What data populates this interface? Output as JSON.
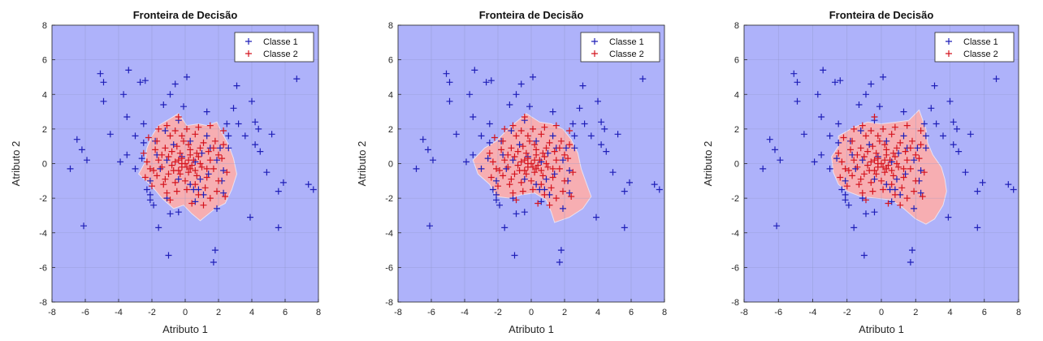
{
  "figure": {
    "panel_count": 3
  },
  "colors": {
    "class1_region": "#aeb2fa",
    "class2_region": "#f7aeb2",
    "class1_marker": "#1f1fb8",
    "class2_marker": "#d4141e",
    "grid": "#8e94c4",
    "axis": "#262626"
  },
  "chart_data": [
    {
      "type": "scatter",
      "title": "Fronteira de Decisão",
      "xlabel": "Atributo 1",
      "ylabel": "Atributo 2",
      "xlim": [
        -8,
        8
      ],
      "ylim": [
        -8,
        8
      ],
      "xticks": [
        -8,
        -6,
        -4,
        -2,
        0,
        2,
        4,
        6,
        8
      ],
      "yticks": [
        -8,
        -6,
        -4,
        -2,
        0,
        2,
        4,
        6,
        8
      ],
      "grid": true,
      "legend_position": "top-right",
      "legend": [
        "Classe 1",
        "Classe 2"
      ],
      "region_class2": [
        [
          -1.6,
          2.2
        ],
        [
          -0.9,
          2.6
        ],
        [
          -0.4,
          2.9
        ],
        [
          0.1,
          2.2
        ],
        [
          0.8,
          2.3
        ],
        [
          1.3,
          2.2
        ],
        [
          1.9,
          2.4
        ],
        [
          2.2,
          1.8
        ],
        [
          2.6,
          1.1
        ],
        [
          2.9,
          0.3
        ],
        [
          3.1,
          -0.6
        ],
        [
          2.8,
          -1.5
        ],
        [
          2.4,
          -2.3
        ],
        [
          1.8,
          -2.6
        ],
        [
          0.9,
          -3.3
        ],
        [
          0.4,
          -2.9
        ],
        [
          -0.1,
          -2.4
        ],
        [
          -0.7,
          -2.6
        ],
        [
          -1.4,
          -2.0
        ],
        [
          -2.0,
          -1.3
        ],
        [
          -2.8,
          -0.6
        ],
        [
          -2.4,
          0.1
        ],
        [
          -2.3,
          0.9
        ],
        [
          -2.0,
          1.6
        ]
      ]
    },
    {
      "type": "scatter",
      "title": "Fronteira de Decisão",
      "xlabel": "Atributo 1",
      "ylabel": "Atributo 2",
      "xlim": [
        -8,
        8
      ],
      "ylim": [
        -8,
        8
      ],
      "xticks": [
        -8,
        -6,
        -4,
        -2,
        0,
        2,
        4,
        6,
        8
      ],
      "yticks": [
        -8,
        -6,
        -4,
        -2,
        0,
        2,
        4,
        6,
        8
      ],
      "grid": true,
      "legend_position": "top-right",
      "legend": [
        "Classe 1",
        "Classe 2"
      ],
      "region_class2": [
        [
          -2.1,
          1.3
        ],
        [
          -1.4,
          2.0
        ],
        [
          -0.9,
          2.4
        ],
        [
          -0.3,
          2.9
        ],
        [
          0.5,
          2.4
        ],
        [
          1.2,
          2.3
        ],
        [
          1.9,
          2.0
        ],
        [
          2.4,
          1.4
        ],
        [
          2.8,
          0.6
        ],
        [
          3.0,
          -0.3
        ],
        [
          3.3,
          -1.1
        ],
        [
          3.6,
          -1.9
        ],
        [
          3.1,
          -2.6
        ],
        [
          2.3,
          -3.1
        ],
        [
          1.4,
          -3.4
        ],
        [
          1.2,
          -2.8
        ],
        [
          0.9,
          -2.1
        ],
        [
          0.2,
          -1.7
        ],
        [
          -0.6,
          -1.8
        ],
        [
          -1.3,
          -2.0
        ],
        [
          -2.1,
          -1.9
        ],
        [
          -2.5,
          -1.2
        ],
        [
          -3.2,
          -0.6
        ],
        [
          -3.5,
          0.2
        ],
        [
          -2.8,
          0.9
        ]
      ]
    },
    {
      "type": "scatter",
      "title": "Fronteira de Decisão",
      "xlabel": "Atributo 1",
      "ylabel": "Atributo 2",
      "xlim": [
        -8,
        8
      ],
      "ylim": [
        -8,
        8
      ],
      "xticks": [
        -8,
        -6,
        -4,
        -2,
        0,
        2,
        4,
        6,
        8
      ],
      "yticks": [
        -8,
        -6,
        -4,
        -2,
        0,
        2,
        4,
        6,
        8
      ],
      "grid": true,
      "legend_position": "top-right",
      "legend": [
        "Classe 1",
        "Classe 2"
      ],
      "region_class2": [
        [
          -2.5,
          1.6
        ],
        [
          -1.6,
          2.1
        ],
        [
          -0.8,
          2.4
        ],
        [
          0.0,
          2.3
        ],
        [
          0.9,
          2.4
        ],
        [
          1.6,
          2.5
        ],
        [
          2.2,
          3.1
        ],
        [
          2.6,
          2.0
        ],
        [
          2.7,
          1.2
        ],
        [
          3.0,
          0.5
        ],
        [
          3.5,
          -0.2
        ],
        [
          3.7,
          -0.9
        ],
        [
          3.8,
          -1.6
        ],
        [
          3.6,
          -2.4
        ],
        [
          3.1,
          -3.2
        ],
        [
          2.6,
          -3.5
        ],
        [
          2.0,
          -3.2
        ],
        [
          1.3,
          -2.6
        ],
        [
          0.6,
          -2.1
        ],
        [
          -0.3,
          -2.0
        ],
        [
          -1.2,
          -1.9
        ],
        [
          -2.0,
          -1.6
        ],
        [
          -2.5,
          -1.2
        ],
        [
          -2.8,
          -0.5
        ],
        [
          -2.9,
          0.4
        ],
        [
          -2.5,
          1.0
        ]
      ]
    }
  ],
  "points": {
    "class1": [
      [
        -6.9,
        -0.3
      ],
      [
        -6.5,
        1.4
      ],
      [
        -6.2,
        0.8
      ],
      [
        -5.9,
        0.2
      ],
      [
        -6.1,
        -3.6
      ],
      [
        -5.1,
        5.2
      ],
      [
        -4.9,
        4.7
      ],
      [
        -4.9,
        3.6
      ],
      [
        -4.5,
        1.7
      ],
      [
        -3.9,
        0.1
      ],
      [
        -3.5,
        0.5
      ],
      [
        -3.4,
        5.4
      ],
      [
        -3.7,
        4.0
      ],
      [
        -3.5,
        2.7
      ],
      [
        -3.0,
        -0.3
      ],
      [
        -3.0,
        1.6
      ],
      [
        -2.7,
        4.7
      ],
      [
        -2.5,
        2.3
      ],
      [
        -2.5,
        1.2
      ],
      [
        -2.4,
        4.8
      ],
      [
        -2.3,
        -1.5
      ],
      [
        -2.1,
        -1.8
      ],
      [
        -2.1,
        -2.1
      ],
      [
        -1.9,
        -2.4
      ],
      [
        -1.8,
        1.3
      ],
      [
        -1.6,
        -3.7
      ],
      [
        -1.3,
        3.4
      ],
      [
        -1.2,
        1.9
      ],
      [
        -1.1,
        -2.0
      ],
      [
        -0.9,
        4.0
      ],
      [
        -1.0,
        -5.3
      ],
      [
        -0.9,
        -2.9
      ],
      [
        -0.6,
        4.6
      ],
      [
        -0.4,
        2.5
      ],
      [
        -0.4,
        -2.8
      ],
      [
        -0.1,
        3.3
      ],
      [
        0.1,
        5.0
      ],
      [
        0.3,
        1.3
      ],
      [
        0.5,
        -1.5
      ],
      [
        0.6,
        -2.2
      ],
      [
        0.8,
        -1.5
      ],
      [
        1.1,
        -1.8
      ],
      [
        1.3,
        3.0
      ],
      [
        1.3,
        1.6
      ],
      [
        1.5,
        0.9
      ],
      [
        1.8,
        -5.0
      ],
      [
        1.9,
        -2.6
      ],
      [
        1.7,
        -5.7
      ],
      [
        2.2,
        -1.0
      ],
      [
        2.3,
        -1.7
      ],
      [
        2.5,
        2.3
      ],
      [
        2.6,
        1.6
      ],
      [
        2.6,
        0.9
      ],
      [
        2.9,
        3.2
      ],
      [
        3.1,
        4.5
      ],
      [
        3.2,
        2.3
      ],
      [
        3.6,
        1.6
      ],
      [
        3.9,
        -3.1
      ],
      [
        4.0,
        3.6
      ],
      [
        4.2,
        2.4
      ],
      [
        4.4,
        2.0
      ],
      [
        4.2,
        1.1
      ],
      [
        4.5,
        0.7
      ],
      [
        4.9,
        -0.5
      ],
      [
        5.2,
        1.7
      ],
      [
        5.6,
        -1.6
      ],
      [
        5.6,
        -3.7
      ],
      [
        5.9,
        -1.1
      ],
      [
        6.7,
        4.9
      ],
      [
        7.4,
        -1.2
      ],
      [
        7.7,
        -1.5
      ],
      [
        -1.7,
        0.5
      ],
      [
        -2.1,
        -1.0
      ],
      [
        1.9,
        0.2
      ],
      [
        2.3,
        -0.4
      ],
      [
        -0.7,
        1.1
      ],
      [
        0.3,
        -1.2
      ],
      [
        1.0,
        0.6
      ],
      [
        -1.5,
        -0.3
      ],
      [
        -0.2,
        0.4
      ],
      [
        0.6,
        0.1
      ],
      [
        -1.1,
        0.2
      ],
      [
        1.4,
        -0.6
      ],
      [
        -0.4,
        -0.9
      ],
      [
        2.1,
        0.9
      ],
      [
        -2.6,
        0.3
      ],
      [
        0.9,
        -0.9
      ]
    ],
    "class2": [
      [
        -1.6,
        2.0
      ],
      [
        -1.1,
        2.2
      ],
      [
        -0.4,
        2.7
      ],
      [
        -0.6,
        1.9
      ],
      [
        0.1,
        2.0
      ],
      [
        0.8,
        2.1
      ],
      [
        1.5,
        2.2
      ],
      [
        2.3,
        1.9
      ],
      [
        -2.2,
        1.5
      ],
      [
        -1.7,
        1.3
      ],
      [
        -0.9,
        1.6
      ],
      [
        -0.2,
        1.6
      ],
      [
        0.6,
        1.7
      ],
      [
        1.1,
        1.2
      ],
      [
        1.8,
        1.3
      ],
      [
        2.3,
        1.1
      ],
      [
        -2.5,
        0.6
      ],
      [
        -1.8,
        0.8
      ],
      [
        -1.2,
        0.9
      ],
      [
        -0.5,
        1.0
      ],
      [
        0.2,
        1.1
      ],
      [
        0.9,
        0.9
      ],
      [
        1.4,
        0.7
      ],
      [
        2.0,
        0.5
      ],
      [
        -2.3,
        0.1
      ],
      [
        -1.6,
        0.2
      ],
      [
        -1.0,
        0.4
      ],
      [
        -0.3,
        0.6
      ],
      [
        0.3,
        0.5
      ],
      [
        0.8,
        0.4
      ],
      [
        1.5,
        0.2
      ],
      [
        2.2,
        0.3
      ],
      [
        -2.1,
        -0.3
      ],
      [
        -1.4,
        -0.2
      ],
      [
        -0.8,
        -0.1
      ],
      [
        -0.2,
        0.0
      ],
      [
        0.4,
        -0.1
      ],
      [
        1.0,
        -0.2
      ],
      [
        1.7,
        -0.3
      ],
      [
        2.5,
        -0.5
      ],
      [
        -2.4,
        -0.8
      ],
      [
        -1.7,
        -0.7
      ],
      [
        -1.0,
        -0.6
      ],
      [
        -0.4,
        -0.4
      ],
      [
        0.2,
        -0.5
      ],
      [
        0.7,
        -0.7
      ],
      [
        1.3,
        -0.8
      ],
      [
        2.0,
        -1.0
      ],
      [
        -2.0,
        -1.3
      ],
      [
        -1.3,
        -1.2
      ],
      [
        -0.6,
        -1.1
      ],
      [
        0.0,
        -1.0
      ],
      [
        0.6,
        -1.2
      ],
      [
        1.2,
        -1.4
      ],
      [
        1.9,
        -1.6
      ],
      [
        2.4,
        -1.9
      ],
      [
        -1.1,
        -1.7
      ],
      [
        -0.5,
        -1.6
      ],
      [
        0.1,
        -1.5
      ],
      [
        0.8,
        -1.8
      ],
      [
        1.5,
        -2.0
      ],
      [
        0.4,
        -2.3
      ],
      [
        -0.9,
        -2.1
      ],
      [
        1.1,
        -2.4
      ],
      [
        -0.2,
        0.3
      ],
      [
        0.1,
        -0.2
      ],
      [
        -0.6,
        0.1
      ],
      [
        0.5,
        0.2
      ],
      [
        -0.3,
        -0.6
      ],
      [
        0.9,
        0.0
      ],
      [
        -1.4,
        0.5
      ],
      [
        1.7,
        0.9
      ],
      [
        -1.9,
        -0.4
      ],
      [
        0.3,
        0.8
      ],
      [
        -0.8,
        0.7
      ],
      [
        0.6,
        -0.4
      ],
      [
        -0.1,
        1.3
      ],
      [
        1.3,
        -0.3
      ],
      [
        -1.2,
        -0.9
      ],
      [
        0.0,
        0.0
      ],
      [
        0.2,
        0.2
      ],
      [
        -0.4,
        0.2
      ],
      [
        0.3,
        -0.3
      ],
      [
        -0.2,
        -0.2
      ],
      [
        0.7,
        0.6
      ],
      [
        -0.7,
        -0.4
      ]
    ]
  }
}
